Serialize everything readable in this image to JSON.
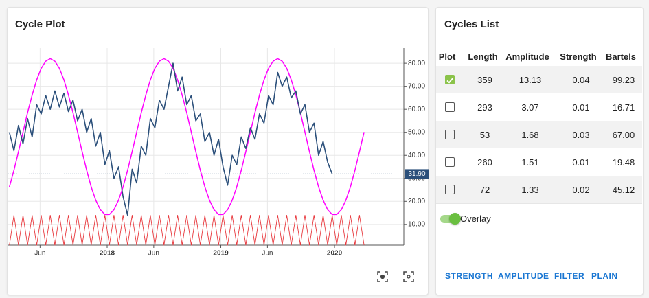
{
  "chart_data": {
    "type": "line",
    "title": "Cycle Plot",
    "x": [
      2017.14,
      2017.18,
      2017.22,
      2017.26,
      2017.3,
      2017.34,
      2017.38,
      2017.42,
      2017.46,
      2017.5,
      2017.54,
      2017.58,
      2017.62,
      2017.66,
      2017.7,
      2017.74,
      2017.78,
      2017.82,
      2017.86,
      2017.9,
      2017.94,
      2017.98,
      2018.02,
      2018.06,
      2018.1,
      2018.14,
      2018.18,
      2018.22,
      2018.26,
      2018.3,
      2018.34,
      2018.38,
      2018.42,
      2018.46,
      2018.5,
      2018.54,
      2018.58,
      2018.62,
      2018.66,
      2018.7,
      2018.74,
      2018.78,
      2018.82,
      2018.86,
      2018.9,
      2018.94,
      2018.98,
      2019.02,
      2019.06,
      2019.1,
      2019.14,
      2019.18,
      2019.22,
      2019.26,
      2019.3,
      2019.34,
      2019.38,
      2019.42,
      2019.46,
      2019.5,
      2019.54,
      2019.58,
      2019.62,
      2019.66,
      2019.7,
      2019.74,
      2019.78,
      2019.82,
      2019.86,
      2019.9,
      2019.94,
      2019.98,
      2020.02,
      2020.06,
      2020.1,
      2020.14,
      2020.18,
      2020.22,
      2020.26
    ],
    "series": [
      {
        "color": "#e8383d",
        "values": [
          1,
          14,
          1,
          14,
          1,
          14,
          1,
          14,
          1,
          14,
          1,
          14,
          1,
          14,
          1,
          14,
          1,
          14,
          1,
          14,
          1,
          14,
          1,
          14,
          1,
          14,
          1,
          14,
          1,
          14,
          1,
          14,
          1,
          14,
          1,
          14,
          1,
          14,
          1,
          14,
          1,
          14,
          1,
          14,
          1,
          14,
          1,
          14,
          1,
          14,
          1,
          14,
          1,
          14,
          1,
          14,
          1,
          14,
          1,
          14,
          1,
          14,
          1,
          14,
          1,
          14,
          1,
          14,
          1,
          14,
          1,
          14,
          1,
          14,
          1,
          14,
          1,
          14,
          1
        ]
      },
      {
        "color": "#ff00ff",
        "values": [
          26.3,
          33.5,
          41.6,
          50.1,
          58.5,
          66.2,
          72.8,
          77.8,
          80.9,
          82,
          80.9,
          77.8,
          72.8,
          66.2,
          58.5,
          50.1,
          41.6,
          33.5,
          26.3,
          20.5,
          16.4,
          14.3,
          14.3,
          16.4,
          20.5,
          26.3,
          33.5,
          41.6,
          50.1,
          58.5,
          66.2,
          72.8,
          77.8,
          80.9,
          82,
          80.9,
          77.8,
          72.8,
          66.2,
          58.5,
          50.1,
          41.6,
          33.5,
          26.3,
          20.5,
          16.4,
          14.3,
          14.3,
          16.4,
          20.5,
          26.3,
          33.5,
          41.6,
          50.1,
          58.5,
          66.2,
          72.8,
          77.8,
          80.9,
          82,
          80.9,
          77.8,
          72.8,
          66.2,
          58.5,
          50.1,
          41.6,
          33.5,
          26.3,
          20.5,
          16.4,
          14.3,
          14.3,
          16.4,
          20.5,
          26.3,
          33.5,
          41.6,
          50.1
        ]
      },
      {
        "color": "#2b4f7a",
        "values": [
          50,
          42,
          53,
          45,
          56,
          48,
          62,
          58,
          66,
          60,
          68,
          61,
          67,
          59,
          64,
          55,
          60,
          50,
          56,
          44,
          50,
          36,
          42,
          30,
          35,
          22,
          14,
          34,
          28,
          44,
          40,
          56,
          52,
          64,
          60,
          70,
          80,
          68,
          74,
          62,
          66,
          55,
          58,
          46,
          50,
          40,
          47,
          35,
          27,
          40,
          36,
          48,
          43,
          52,
          47,
          58,
          54,
          66,
          62,
          76,
          70,
          74,
          65,
          68,
          58,
          62,
          50,
          54,
          40,
          46,
          37,
          31.9,
          null,
          null,
          null,
          null,
          null,
          null,
          null
        ]
      }
    ],
    "last_value": {
      "value": 31.9,
      "label": "31.90"
    },
    "xlim": [
      2017.13,
      2020.61
    ],
    "xticks": [
      {
        "value": 2017.41,
        "label": "Jun"
      },
      2018,
      {
        "value": 2018.41,
        "label": "Jun"
      },
      2019,
      {
        "value": 2019.41,
        "label": "Jun"
      },
      2020
    ],
    "ylim": [
      1,
      86.6
    ],
    "yticks": [
      {
        "value": 10,
        "label": "10.00"
      },
      {
        "value": 20,
        "label": "20.00"
      },
      {
        "value": 30,
        "label": "30.00"
      },
      {
        "value": 40,
        "label": "40.00"
      },
      {
        "value": 50,
        "label": "50.00"
      },
      {
        "value": 60,
        "label": "60.00"
      },
      {
        "value": 70,
        "label": "70.00"
      },
      {
        "value": 80,
        "label": "80.00"
      }
    ],
    "grid": true
  },
  "cycles_list": {
    "title": "Cycles List",
    "columns": [
      "Plot",
      "Length",
      "Amplitude",
      "Strength",
      "Bartels"
    ],
    "rows": [
      {
        "checked": true,
        "cells": [
          "359",
          "13.13",
          "0.04",
          "99.23"
        ]
      },
      {
        "checked": false,
        "cells": [
          "293",
          "3.07",
          "0.01",
          "16.71"
        ]
      },
      {
        "checked": false,
        "cells": [
          "53",
          "1.68",
          "0.03",
          "67.00"
        ]
      },
      {
        "checked": false,
        "cells": [
          "260",
          "1.51",
          "0.01",
          "19.48"
        ]
      },
      {
        "checked": false,
        "cells": [
          "72",
          "1.33",
          "0.02",
          "45.12"
        ]
      }
    ],
    "overlay": {
      "label": "Overlay",
      "on": true
    },
    "buttons": [
      "STRENGTH",
      "AMPLITUDE",
      "FILTER",
      "PLAIN"
    ]
  }
}
